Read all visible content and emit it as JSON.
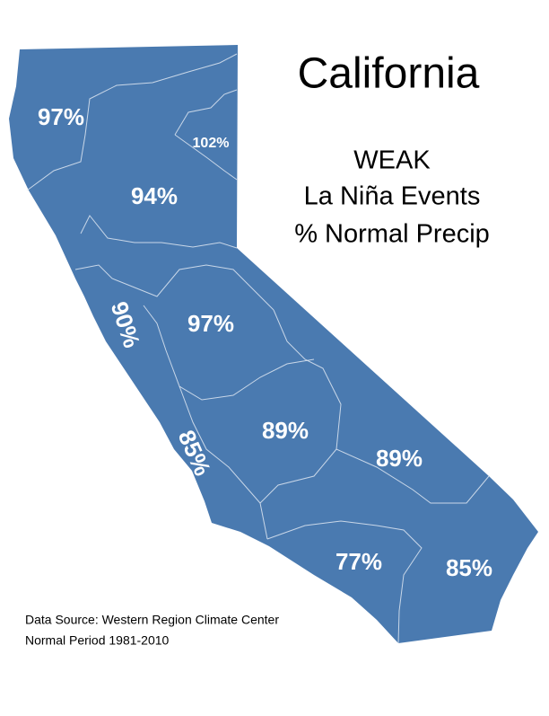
{
  "title": "California",
  "subtitle": [
    "WEAK",
    "La Niña Events",
    "% Normal Precip"
  ],
  "regions": [
    {
      "label": "97%"
    },
    {
      "label": "102%"
    },
    {
      "label": "94%"
    },
    {
      "label": "90%"
    },
    {
      "label": "97%"
    },
    {
      "label": "85%"
    },
    {
      "label": "89%"
    },
    {
      "label": "89%"
    },
    {
      "label": "77%"
    },
    {
      "label": "85%"
    }
  ],
  "source": [
    "Data Source: Western Region Climate Center",
    "Normal Period 1981-2010"
  ]
}
